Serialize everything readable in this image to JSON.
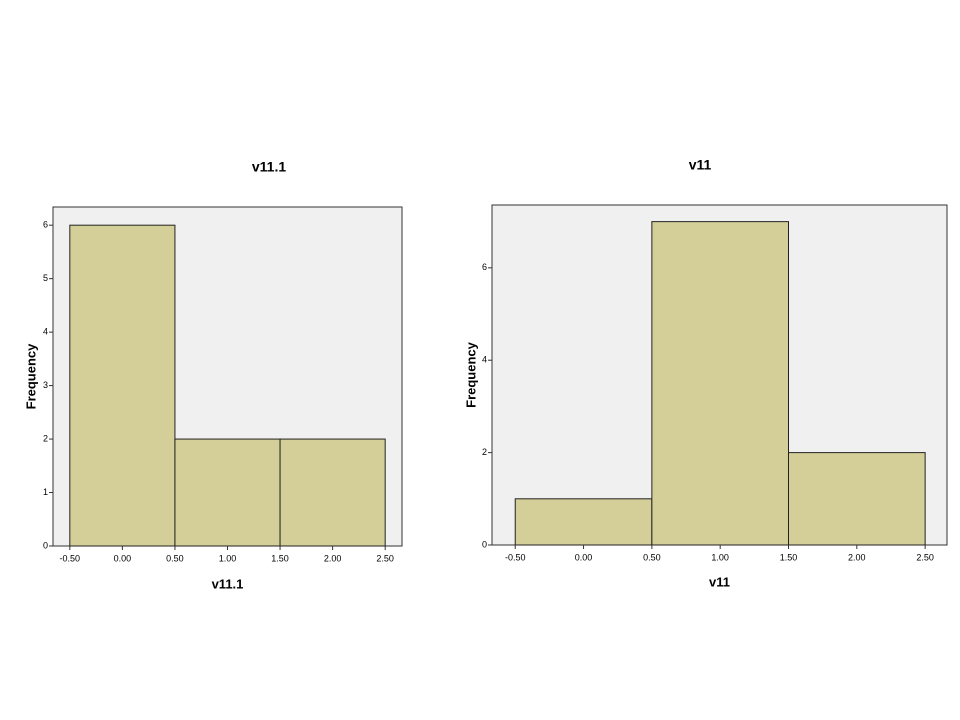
{
  "chart_data": [
    {
      "type": "histogram",
      "title": "v11.1",
      "x_label": "v11.1",
      "y_label": "Frequency",
      "bins": [
        -0.5,
        0.5,
        1.5,
        2.5
      ],
      "values": [
        6,
        2,
        2
      ],
      "color": "#d4cf98",
      "xlim": [
        -0.66,
        2.66
      ],
      "ylim": [
        0,
        6.34
      ],
      "xticks": [
        {
          "value": -0.5,
          "label": "-0.50"
        },
        {
          "value": 0,
          "label": "0.00"
        },
        {
          "value": 0.5,
          "label": "0.50"
        },
        {
          "value": 1,
          "label": "1.00"
        },
        {
          "value": 1.5,
          "label": "1.50"
        },
        {
          "value": 2,
          "label": "2.00"
        },
        {
          "value": 2.5,
          "label": "2.50"
        }
      ],
      "yticks": [
        0,
        1,
        2,
        3,
        4,
        5,
        6
      ]
    },
    {
      "type": "histogram",
      "title": "v11",
      "x_label": "v11",
      "y_label": "Frequency",
      "bins": [
        -0.5,
        0.5,
        1.5,
        2.5
      ],
      "values": [
        1,
        7,
        2
      ],
      "color": "#d4cf98",
      "xlim": [
        -0.67,
        2.66
      ],
      "ylim": [
        0,
        7.36
      ],
      "xticks": [
        {
          "value": -0.5,
          "label": "-0.50"
        },
        {
          "value": 0,
          "label": "0.00"
        },
        {
          "value": 0.5,
          "label": "0.50"
        },
        {
          "value": 1,
          "label": "1.00"
        },
        {
          "value": 1.5,
          "label": "1.50"
        },
        {
          "value": 2,
          "label": "2.00"
        },
        {
          "value": 2.5,
          "label": "2.50"
        }
      ],
      "yticks": [
        0,
        2,
        4,
        6
      ]
    }
  ]
}
